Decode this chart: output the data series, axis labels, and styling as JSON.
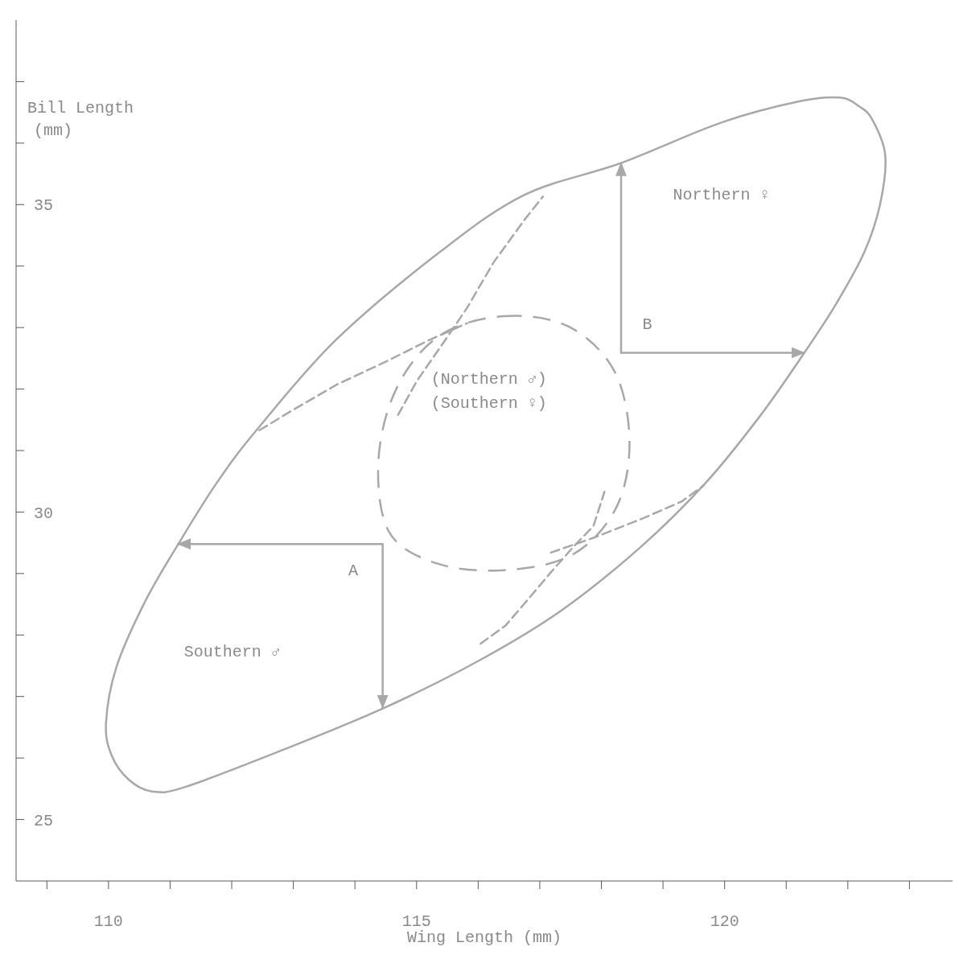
{
  "chart_data": {
    "type": "line",
    "xlabel": "Wing Length  (mm)",
    "ylabel": "Bill Length\n(mm)",
    "xlim": [
      108.5,
      123.7
    ],
    "ylim": [
      24,
      38
    ],
    "xticks": [
      {
        "value": 109,
        "label": null
      },
      110,
      {
        "value": 111,
        "label": null
      },
      {
        "value": 112,
        "label": null
      },
      {
        "value": 113,
        "label": null
      },
      {
        "value": 114,
        "label": null
      },
      115,
      {
        "value": 116,
        "label": null
      },
      {
        "value": 117,
        "label": null
      },
      {
        "value": 118,
        "label": null
      },
      {
        "value": 119,
        "label": null
      },
      120,
      {
        "value": 121,
        "label": null
      },
      {
        "value": 122,
        "label": null
      },
      {
        "value": 123,
        "label": null
      }
    ],
    "yticks": [
      25,
      {
        "value": 26,
        "label": null
      },
      {
        "value": 27,
        "label": null
      },
      {
        "value": 28,
        "label": null
      },
      {
        "value": 29,
        "label": null
      },
      30,
      {
        "value": 31,
        "label": null
      },
      {
        "value": 32,
        "label": null
      },
      {
        "value": 33,
        "label": null
      },
      {
        "value": 34,
        "label": null
      },
      35,
      {
        "value": 36,
        "label": null
      },
      {
        "value": 37,
        "label": null
      }
    ],
    "series": [
      {
        "color": "#a8a8a8",
        "line_style": "dashed",
        "x": [
          112.45,
          112.96,
          113.7,
          114.51,
          115.19,
          115.82
        ],
        "values": [
          31.33,
          31.64,
          32.07,
          32.45,
          32.79,
          33.07
        ]
      },
      {
        "color": "#a8a8a8",
        "line_style": "dashed",
        "x": [
          117.18,
          117.87,
          118.68,
          119.3,
          119.66
        ],
        "values": [
          29.34,
          29.58,
          29.9,
          30.17,
          30.43
        ]
      },
      {
        "color": "#a8a8a8",
        "line_style": "dashed",
        "x": [
          114.7,
          115.01,
          115.44,
          115.82,
          116.25,
          116.75,
          117.05
        ],
        "values": [
          31.58,
          32.14,
          32.76,
          33.32,
          34.06,
          34.75,
          35.13
        ]
      },
      {
        "color": "#a8a8a8",
        "line_style": "dashed",
        "x": [
          116.04,
          116.44,
          116.81,
          117.18,
          117.56,
          117.87,
          118.05
        ],
        "values": [
          27.86,
          28.15,
          28.58,
          29.02,
          29.45,
          29.77,
          30.33
        ]
      },
      {
        "color": "#a8a8a8",
        "line_style": "solid",
        "x": [
          114.45,
          111.13
        ],
        "values": [
          29.48,
          29.48
        ]
      },
      {
        "color": "#a8a8a8",
        "line_style": "solid",
        "x": [
          114.45,
          114.45
        ],
        "values": [
          29.48,
          26.82
        ]
      },
      {
        "color": "#a8a8a8",
        "line_style": "solid",
        "x": [
          118.32,
          118.32
        ],
        "values": [
          32.59,
          35.67
        ]
      },
      {
        "color": "#a8a8a8",
        "line_style": "solid",
        "x": [
          118.32,
          121.29
        ],
        "values": [
          32.59,
          32.59
        ]
      }
    ],
    "annotations": [
      "Northern ♀",
      "B",
      "(Northern ♂)",
      "(Southern ♀)",
      "A",
      "Southern ♂"
    ]
  }
}
